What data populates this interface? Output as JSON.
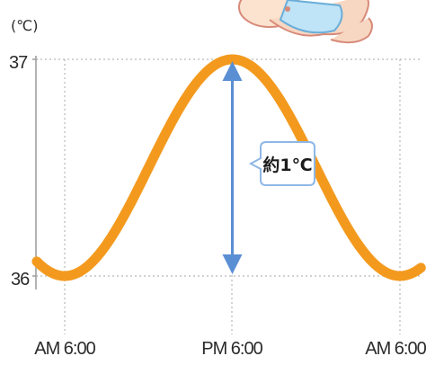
{
  "chart_data": {
    "type": "line",
    "unit_label": "(℃)",
    "y_ticks": [
      {
        "value": 37,
        "label": "37"
      },
      {
        "value": 36,
        "label": "36"
      }
    ],
    "ylim": [
      36,
      37
    ],
    "x_ticks": [
      {
        "value": 6,
        "label": "AM 6:00"
      },
      {
        "value": 18,
        "label": "PM 6:00"
      },
      {
        "value": 30,
        "label": "AM 6:00"
      }
    ],
    "xlim": [
      6,
      30
    ],
    "grid": "dotted",
    "series": [
      {
        "color": "#f39a1e",
        "min_temp": 36,
        "max_temp": 37,
        "peak_time": 18,
        "trough_time": 6,
        "period_hours": 24
      }
    ],
    "annotation": {
      "text": "約1℃",
      "from_value": 36,
      "to_value": 37,
      "arrow_color": "#5b8fd4"
    }
  }
}
